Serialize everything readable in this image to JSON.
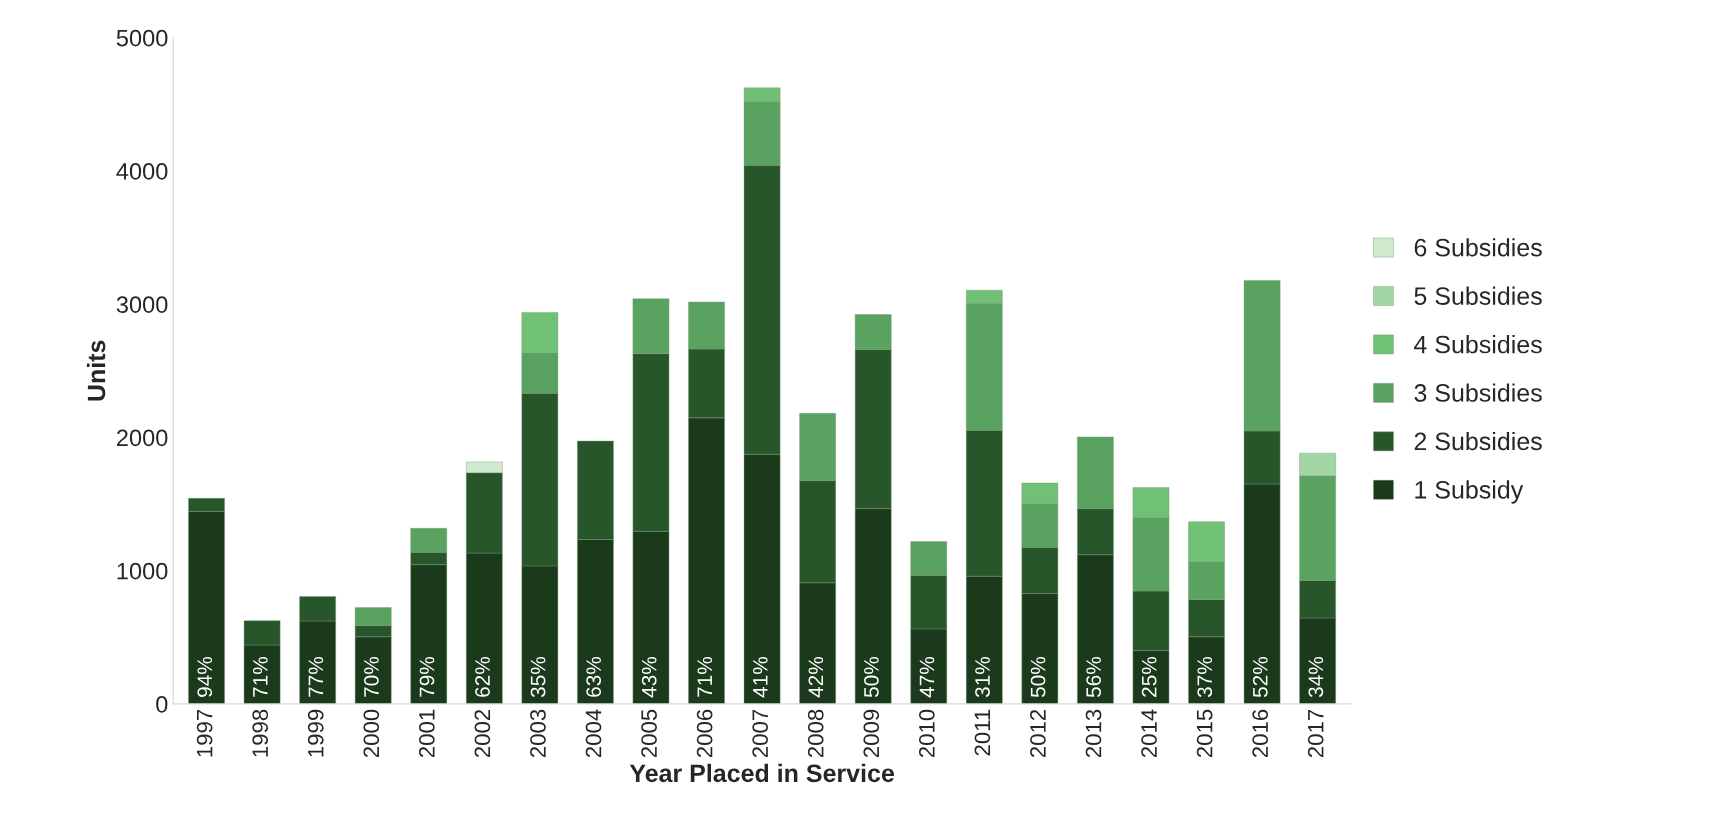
{
  "chart_data": {
    "type": "bar",
    "stacked": true,
    "xlabel": "Year Placed in Service",
    "ylabel": "Units",
    "categories": [
      "1997",
      "1998",
      "1999",
      "2000",
      "2001",
      "2002",
      "2003",
      "2004",
      "2005",
      "2006",
      "2007",
      "2008",
      "2009",
      "2010",
      "2011",
      "2012",
      "2013",
      "2014",
      "2015",
      "2016",
      "2017"
    ],
    "series": [
      {
        "name": "1 Subsidy",
        "color": "#1b3a1c",
        "values": [
          1444,
          442,
          622,
          504,
          1045,
          1132,
          1036,
          1234,
          1296,
          2147,
          1874,
          909,
          1466,
          563,
          959,
          829,
          1120,
          401,
          504,
          1651,
          645
        ]
      },
      {
        "name": "2 Subsidies",
        "color": "#27562a",
        "values": [
          99,
          183,
          185,
          84,
          93,
          603,
          1296,
          739,
          1333,
          516,
          2169,
          767,
          1194,
          402,
          1095,
          346,
          346,
          446,
          279,
          398,
          281
        ]
      },
      {
        "name": "3 Subsidies",
        "color": "#5aa25f",
        "values": [
          null,
          null,
          null,
          136,
          180,
          null,
          303,
          null,
          412,
          353,
          479,
          505,
          263,
          254,
          953,
          328,
          538,
          552,
          282,
          1129,
          786
        ]
      },
      {
        "name": "4 Subsidies",
        "color": "#70c176",
        "values": [
          null,
          null,
          null,
          null,
          null,
          null,
          303,
          null,
          null,
          null,
          102,
          null,
          null,
          null,
          98,
          155,
          null,
          226,
          302,
          null,
          null
        ]
      },
      {
        "name": "5 Subsidies",
        "color": "#a3d6a5",
        "values": [
          null,
          null,
          null,
          null,
          null,
          null,
          null,
          null,
          null,
          null,
          null,
          null,
          null,
          null,
          null,
          null,
          null,
          null,
          null,
          null,
          170
        ]
      },
      {
        "name": "6 Subsidies",
        "color": "#d0ead0",
        "values": [
          null,
          null,
          null,
          null,
          null,
          81,
          null,
          null,
          null,
          null,
          null,
          null,
          null,
          null,
          null,
          null,
          null,
          null,
          null,
          null,
          null
        ]
      }
    ],
    "annotations": [
      {
        "text": "94%",
        "x": "1997",
        "y": 0
      },
      {
        "text": "71%",
        "x": "1998",
        "y": 0
      },
      {
        "text": "77%",
        "x": "1999",
        "y": 0
      },
      {
        "text": "70%",
        "x": "2000",
        "y": 0
      },
      {
        "text": "79%",
        "x": "2001",
        "y": 0
      },
      {
        "text": "62%",
        "x": "2002",
        "y": 0
      },
      {
        "text": "35%",
        "x": "2003",
        "y": 0
      },
      {
        "text": "63%",
        "x": "2004",
        "y": 0
      },
      {
        "text": "43%",
        "x": "2005",
        "y": 0
      },
      {
        "text": "71%",
        "x": "2006",
        "y": 0
      },
      {
        "text": "41%",
        "x": "2007",
        "y": 0
      },
      {
        "text": "42%",
        "x": "2008",
        "y": 0
      },
      {
        "text": "50%",
        "x": "2009",
        "y": 0
      },
      {
        "text": "47%",
        "x": "2010",
        "y": 0
      },
      {
        "text": "31%",
        "x": "2011",
        "y": 0
      },
      {
        "text": "50%",
        "x": "2012",
        "y": 0
      },
      {
        "text": "56%",
        "x": "2013",
        "y": 0
      },
      {
        "text": "25%",
        "x": "2014",
        "y": 0
      },
      {
        "text": "37%",
        "x": "2015",
        "y": 0
      },
      {
        "text": "52%",
        "x": "2016",
        "y": 0
      },
      {
        "text": "34%",
        "x": "2017",
        "y": 0
      }
    ],
    "ylim": [
      0,
      5000
    ],
    "yticks": [
      0,
      1000,
      2000,
      3000,
      4000,
      5000
    ],
    "grid": false,
    "legend": "right"
  }
}
